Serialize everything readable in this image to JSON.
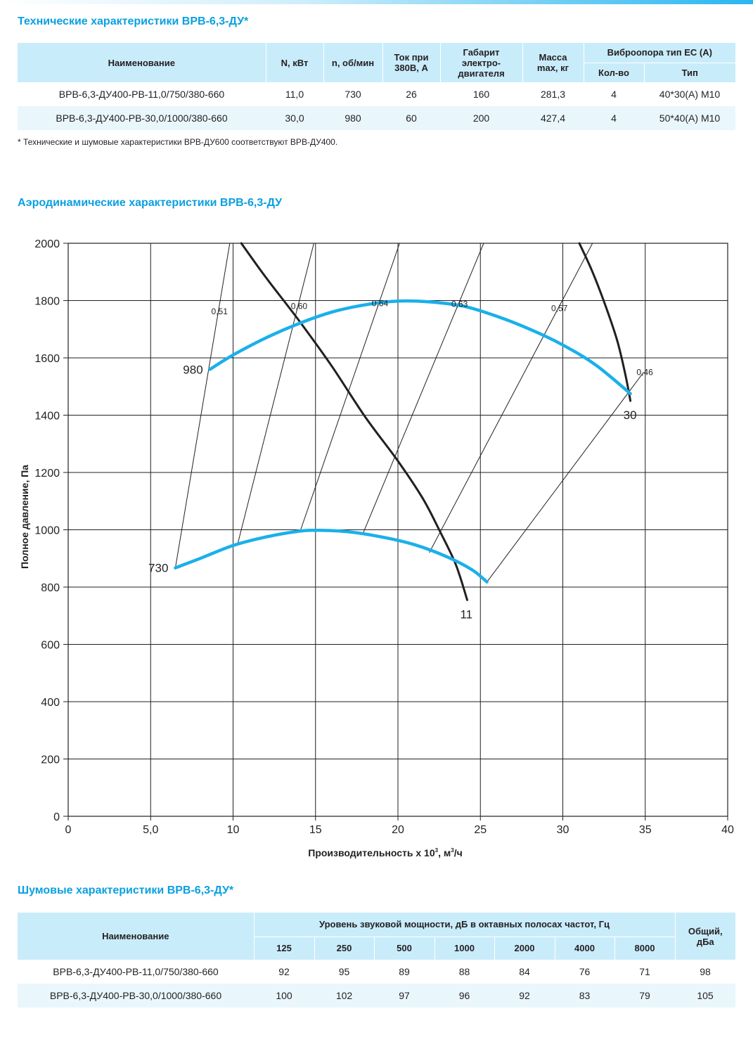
{
  "tech": {
    "title": "Технические характеристики ВРВ-6,3-ДУ*",
    "headers": {
      "name": "Наименование",
      "power": "N, кВт",
      "speed": "n, об/мин",
      "current_1": "Ток при",
      "current_2": "380В, А",
      "frame_1": "Габарит",
      "frame_2": "электро-",
      "frame_3": "двигателя",
      "mass_1": "Масса",
      "mass_2": "max, кг",
      "vibro": "Виброопора тип ЕС (А)",
      "vibro_qty": "Кол-во",
      "vibro_type": "Тип"
    },
    "rows": [
      [
        "ВРВ-6,3-ДУ400-РВ-11,0/750/380-660",
        "11,0",
        "730",
        "26",
        "160",
        "281,3",
        "4",
        "40*30(А) М10"
      ],
      [
        "ВРВ-6,3-ДУ400-РВ-30,0/1000/380-660",
        "30,0",
        "980",
        "60",
        "200",
        "427,4",
        "4",
        "50*40(А) М10"
      ]
    ],
    "note": "* Технические и шумовые характеристики ВРВ-ДУ600 соответствуют ВРВ-ДУ400."
  },
  "aero": {
    "title": "Аэродинамические характеристики ВРВ-6,3-ДУ"
  },
  "chart_data": {
    "type": "line",
    "xlabel_main": "Производительность х 10",
    "xlabel_sup1": "3",
    "xlabel_mid": ", м",
    "xlabel_sup2": "3",
    "xlabel_end": "/ч",
    "ylabel": "Полное давление, Па",
    "xlim": [
      0,
      40
    ],
    "ylim": [
      0,
      2000
    ],
    "xticks": [
      {
        "v": 0,
        "label": "0"
      },
      {
        "v": 5,
        "label": "5,0"
      },
      {
        "v": 10,
        "label": "10"
      },
      {
        "v": 15,
        "label": "15"
      },
      {
        "v": 20,
        "label": "20"
      },
      {
        "v": 25,
        "label": "25"
      },
      {
        "v": 30,
        "label": "30"
      },
      {
        "v": 35,
        "label": "35"
      },
      {
        "v": 40,
        "label": "40"
      }
    ],
    "yticks": [
      {
        "v": 0,
        "label": "0"
      },
      {
        "v": 200,
        "label": "200"
      },
      {
        "v": 400,
        "label": "400"
      },
      {
        "v": 600,
        "label": "600"
      },
      {
        "v": 800,
        "label": "800"
      },
      {
        "v": 1000,
        "label": "1000"
      },
      {
        "v": 1200,
        "label": "1200"
      },
      {
        "v": 1400,
        "label": "1400"
      },
      {
        "v": 1600,
        "label": "1600"
      },
      {
        "v": 1800,
        "label": "1800"
      },
      {
        "v": 2000,
        "label": "2000"
      }
    ],
    "grid": true,
    "speed_curves": [
      {
        "label": "980",
        "color": "#1ab0ea",
        "points": [
          [
            8.6,
            1560
          ],
          [
            10,
            1610
          ],
          [
            12,
            1670
          ],
          [
            14,
            1720
          ],
          [
            16,
            1760
          ],
          [
            18,
            1785
          ],
          [
            20,
            1798
          ],
          [
            22,
            1795
          ],
          [
            24,
            1780
          ],
          [
            26,
            1745
          ],
          [
            28,
            1700
          ],
          [
            30,
            1645
          ],
          [
            32,
            1575
          ],
          [
            34.1,
            1475
          ]
        ]
      },
      {
        "label": "730",
        "color": "#1ab0ea",
        "points": [
          [
            6.5,
            867
          ],
          [
            8,
            900
          ],
          [
            10,
            945
          ],
          [
            12,
            975
          ],
          [
            14,
            995
          ],
          [
            15.2,
            998
          ],
          [
            17,
            993
          ],
          [
            19,
            975
          ],
          [
            21,
            948
          ],
          [
            23,
            905
          ],
          [
            24.5,
            860
          ],
          [
            25.4,
            818
          ]
        ]
      }
    ],
    "power_curves": [
      {
        "label": "11",
        "color": "#231f20",
        "points": [
          [
            10.5,
            2000
          ],
          [
            12,
            1880
          ],
          [
            14,
            1730
          ],
          [
            16,
            1570
          ],
          [
            18,
            1395
          ],
          [
            20,
            1240
          ],
          [
            21.5,
            1110
          ],
          [
            22.5,
            1000
          ],
          [
            23.5,
            880
          ],
          [
            24.2,
            755
          ]
        ]
      },
      {
        "label": "30",
        "color": "#231f20",
        "points": [
          [
            31,
            2000
          ],
          [
            31.8,
            1900
          ],
          [
            32.6,
            1780
          ],
          [
            33.3,
            1660
          ],
          [
            33.8,
            1540
          ],
          [
            34.1,
            1450
          ]
        ]
      }
    ],
    "efficiency_lines": [
      {
        "label": "0,51",
        "points": [
          [
            6.5,
            867
          ],
          [
            9.8,
            2000
          ]
        ]
      },
      {
        "label": "0,60",
        "points": [
          [
            10.3,
            955
          ],
          [
            14.9,
            2000
          ]
        ]
      },
      {
        "label": "0,64",
        "points": [
          [
            14.1,
            1000
          ],
          [
            20.1,
            2000
          ]
        ]
      },
      {
        "label": "0,63",
        "points": [
          [
            17.9,
            990
          ],
          [
            25.2,
            2000
          ]
        ]
      },
      {
        "label": "0,57",
        "points": [
          [
            21.9,
            920
          ],
          [
            31.8,
            2000
          ]
        ]
      },
      {
        "label": "0,46",
        "points": [
          [
            25.4,
            818
          ],
          [
            34.9,
            1550
          ]
        ]
      }
    ]
  },
  "noise": {
    "title": "Шумовые характеристики ВРВ-6,3-ДУ*",
    "headers": {
      "name": "Наименование",
      "level": "Уровень звуковой мощности, дБ в октавных полосах частот, Гц",
      "total_1": "Общий,",
      "total_2": "дБа",
      "freqs": [
        "125",
        "250",
        "500",
        "1000",
        "2000",
        "4000",
        "8000"
      ]
    },
    "rows": [
      {
        "name": "ВРВ-6,3-ДУ400-РВ-11,0/750/380-660",
        "values": [
          "92",
          "95",
          "89",
          "88",
          "84",
          "76",
          "71"
        ],
        "total": "98"
      },
      {
        "name": "ВРВ-6,3-ДУ400-РВ-30,0/1000/380-660",
        "values": [
          "100",
          "102",
          "97",
          "96",
          "92",
          "83",
          "79"
        ],
        "total": "105"
      }
    ]
  }
}
